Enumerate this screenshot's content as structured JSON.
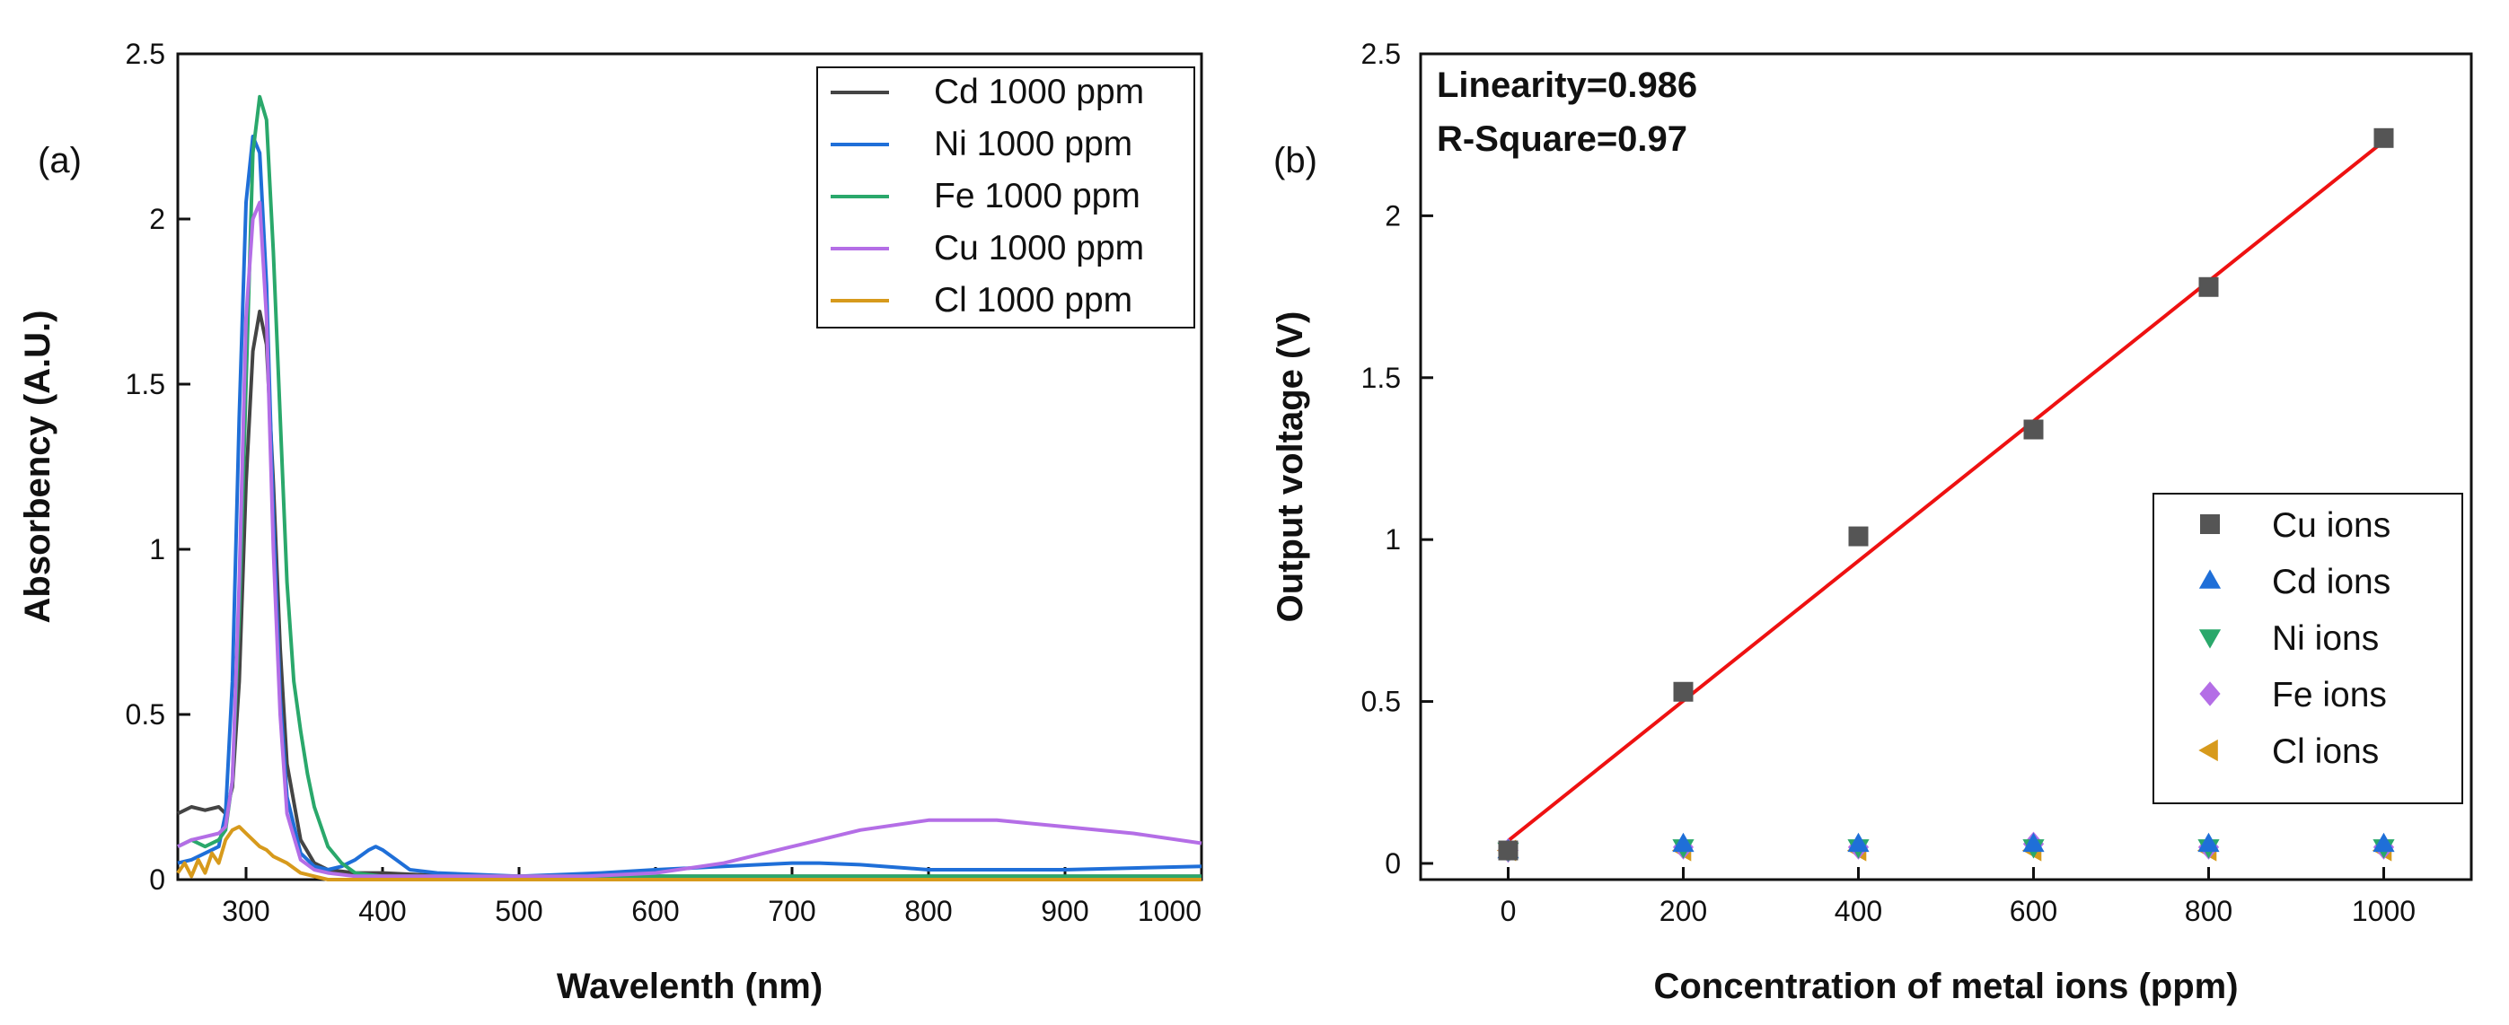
{
  "chart_data": [
    {
      "type": "line",
      "panel_label": "(a)",
      "xlabel": "Wavelenth (nm)",
      "ylabel": "Absorbency (A.U.)",
      "xlim": [
        250,
        1000
      ],
      "ylim": [
        0,
        2.5
      ],
      "xticks": [
        "300",
        "400",
        "500",
        "600",
        "700",
        "800",
        "900",
        "1000"
      ],
      "xtick_values": [
        300,
        400,
        500,
        600,
        700,
        800,
        900,
        1000
      ],
      "yticks": [
        "0",
        "0.5",
        "1",
        "1.5",
        "2",
        "2.5"
      ],
      "ytick_values": [
        0,
        0.5,
        1,
        1.5,
        2,
        2.5
      ],
      "legend_position": "top-right",
      "series": [
        {
          "name": "Cd 1000 ppm",
          "color": "#444444",
          "x": [
            250,
            260,
            270,
            280,
            285,
            290,
            295,
            300,
            305,
            310,
            315,
            320,
            325,
            330,
            340,
            350,
            360,
            380,
            400,
            450,
            500,
            600,
            700,
            800,
            900,
            1000
          ],
          "y": [
            0.2,
            0.22,
            0.21,
            0.22,
            0.2,
            0.28,
            0.6,
            1.2,
            1.6,
            1.72,
            1.62,
            1.2,
            0.7,
            0.35,
            0.12,
            0.05,
            0.03,
            0.02,
            0.02,
            0.01,
            0.01,
            0.01,
            0.01,
            0.01,
            0.01,
            0.01
          ]
        },
        {
          "name": "Ni 1000 ppm",
          "color": "#1f6fd8",
          "x": [
            250,
            260,
            270,
            280,
            285,
            290,
            295,
            300,
            305,
            310,
            315,
            320,
            325,
            330,
            340,
            350,
            360,
            370,
            380,
            390,
            395,
            400,
            410,
            420,
            440,
            500,
            560,
            600,
            650,
            700,
            720,
            750,
            800,
            850,
            900,
            950,
            1000
          ],
          "y": [
            0.05,
            0.06,
            0.08,
            0.1,
            0.2,
            0.6,
            1.4,
            2.05,
            2.25,
            2.2,
            1.8,
            1.1,
            0.55,
            0.25,
            0.08,
            0.04,
            0.03,
            0.04,
            0.06,
            0.09,
            0.1,
            0.09,
            0.06,
            0.03,
            0.02,
            0.01,
            0.02,
            0.03,
            0.04,
            0.05,
            0.05,
            0.045,
            0.03,
            0.03,
            0.03,
            0.035,
            0.04
          ]
        },
        {
          "name": "Fe 1000 ppm",
          "color": "#2aa86b",
          "x": [
            250,
            260,
            270,
            280,
            285,
            290,
            295,
            300,
            305,
            310,
            315,
            320,
            325,
            330,
            335,
            340,
            345,
            350,
            360,
            370,
            380,
            400,
            450,
            500,
            600,
            700,
            800,
            900,
            1000
          ],
          "y": [
            0.1,
            0.12,
            0.1,
            0.12,
            0.15,
            0.3,
            0.8,
            1.5,
            2.2,
            2.37,
            2.3,
            1.9,
            1.4,
            0.9,
            0.6,
            0.45,
            0.32,
            0.22,
            0.1,
            0.05,
            0.02,
            0.01,
            0.01,
            0.01,
            0.01,
            0.01,
            0.01,
            0.01,
            0.01
          ]
        },
        {
          "name": "Cu 1000 ppm",
          "color": "#b46ee6",
          "x": [
            250,
            260,
            270,
            280,
            285,
            290,
            295,
            300,
            305,
            310,
            315,
            320,
            325,
            330,
            340,
            350,
            360,
            380,
            400,
            450,
            500,
            550,
            600,
            650,
            700,
            750,
            800,
            850,
            900,
            950,
            1000
          ],
          "y": [
            0.1,
            0.12,
            0.13,
            0.14,
            0.16,
            0.3,
            0.9,
            1.7,
            2.0,
            2.05,
            1.7,
            1.0,
            0.5,
            0.2,
            0.06,
            0.03,
            0.02,
            0.01,
            0.01,
            0.01,
            0.01,
            0.01,
            0.02,
            0.05,
            0.1,
            0.15,
            0.18,
            0.18,
            0.16,
            0.14,
            0.11
          ]
        },
        {
          "name": "Cl 1000 ppm",
          "color": "#d79a1c",
          "x": [
            250,
            255,
            260,
            265,
            270,
            275,
            280,
            285,
            290,
            295,
            300,
            305,
            310,
            315,
            320,
            330,
            340,
            350,
            360,
            380,
            400,
            500,
            600,
            700,
            800,
            900,
            1000
          ],
          "y": [
            0.02,
            0.05,
            0.01,
            0.06,
            0.02,
            0.08,
            0.05,
            0.12,
            0.15,
            0.16,
            0.14,
            0.12,
            0.1,
            0.09,
            0.07,
            0.05,
            0.02,
            0.01,
            0.0,
            0.0,
            0.0,
            0.0,
            0.0,
            0.0,
            0.0,
            0.0,
            0.0
          ]
        }
      ]
    },
    {
      "type": "scatter",
      "panel_label": "(b)",
      "xlabel": "Concentration of metal ions (ppm)",
      "ylabel": "Output voltage (V)",
      "xlim": [
        -100,
        1100
      ],
      "ylim": [
        -0.05,
        2.5
      ],
      "xticks": [
        "0",
        "200",
        "400",
        "600",
        "800",
        "1000"
      ],
      "xtick_values": [
        0,
        200,
        400,
        600,
        800,
        1000
      ],
      "yticks": [
        "0",
        "0.5",
        "1",
        "1.5",
        "2",
        "2.5"
      ],
      "ytick_values": [
        0,
        0.5,
        1,
        1.5,
        2,
        2.5
      ],
      "annotations": [
        "Linearity=0.986",
        "R-Square=0.97"
      ],
      "legend_position": "bottom-right",
      "fit_line": {
        "color": "#ee1111",
        "x": [
          0,
          1000
        ],
        "y": [
          0.07,
          2.23
        ]
      },
      "series": [
        {
          "name": "Cu ions",
          "marker": "square",
          "color": "#555555",
          "x": [
            0,
            200,
            400,
            600,
            800,
            1000
          ],
          "y": [
            0.04,
            0.53,
            1.01,
            1.34,
            1.78,
            2.24
          ]
        },
        {
          "name": "Cd ions",
          "marker": "triangle-up",
          "color": "#1f6fd8",
          "x": [
            0,
            200,
            400,
            600,
            800,
            1000
          ],
          "y": [
            0.04,
            0.06,
            0.06,
            0.06,
            0.06,
            0.06
          ]
        },
        {
          "name": "Ni  ions",
          "marker": "triangle-down",
          "color": "#2aa86b",
          "x": [
            0,
            200,
            400,
            600,
            800,
            1000
          ],
          "y": [
            0.04,
            0.05,
            0.05,
            0.05,
            0.05,
            0.05
          ]
        },
        {
          "name": "Fe ions",
          "marker": "diamond",
          "color": "#b46ee6",
          "x": [
            0,
            200,
            400,
            600,
            800,
            1000
          ],
          "y": [
            0.04,
            0.05,
            0.05,
            0.06,
            0.05,
            0.05
          ]
        },
        {
          "name": "Cl ions",
          "marker": "triangle-left",
          "color": "#d79a1c",
          "x": [
            0,
            200,
            400,
            600,
            800,
            1000
          ],
          "y": [
            0.04,
            0.04,
            0.04,
            0.04,
            0.04,
            0.04
          ]
        }
      ]
    }
  ]
}
